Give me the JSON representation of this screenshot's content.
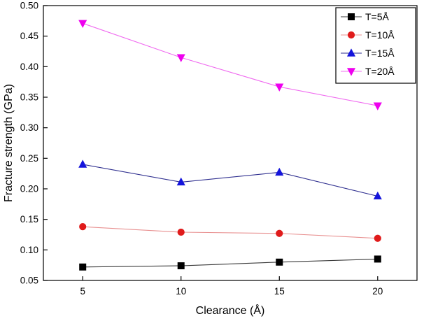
{
  "figure": {
    "background": "#ffffff",
    "border_color": "#000000"
  },
  "chart_data": {
    "type": "line",
    "title": "",
    "xlabel": "Clearance (Å)",
    "ylabel": "Fracture strength (GPa)",
    "xlim": [
      3,
      22
    ],
    "ylim": [
      0.05,
      0.5
    ],
    "xticks": [
      5,
      10,
      15,
      20
    ],
    "yticks": [
      0.05,
      0.1,
      0.15,
      0.2,
      0.25,
      0.3,
      0.35,
      0.4,
      0.45,
      0.5
    ],
    "grid": false,
    "legend_position": "top-right-inside",
    "x": [
      5,
      10,
      15,
      20
    ],
    "series": [
      {
        "name": "T=5Å",
        "marker": "square",
        "color": "#000000",
        "line_color": "#3a3a3a",
        "values": [
          0.072,
          0.074,
          0.08,
          0.085
        ]
      },
      {
        "name": "T=10Å",
        "marker": "circle",
        "color": "#e01b1b",
        "line_color": "#e89090",
        "values": [
          0.138,
          0.129,
          0.127,
          0.119
        ]
      },
      {
        "name": "T=15Å",
        "marker": "triangle-up",
        "color": "#1414dc",
        "line_color": "#2f2f8f",
        "values": [
          0.24,
          0.211,
          0.227,
          0.188
        ]
      },
      {
        "name": "T=20Å",
        "marker": "triangle-down",
        "color": "#ee00ee",
        "line_color": "#f06cf0",
        "values": [
          0.471,
          0.415,
          0.367,
          0.336
        ]
      }
    ]
  }
}
